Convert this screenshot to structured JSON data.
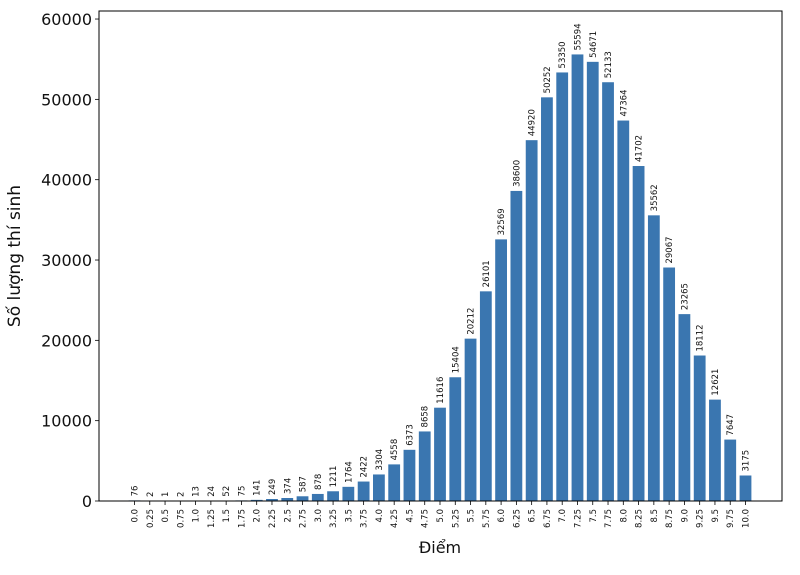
{
  "chart_data": {
    "type": "bar",
    "title": "",
    "xlabel": "Điểm",
    "ylabel": "Số lượng thí sinh",
    "ylim": [
      0,
      61000
    ],
    "yticks": [
      0,
      10000,
      20000,
      30000,
      40000,
      50000,
      60000
    ],
    "bar_color": "#3a76b0",
    "grid": false,
    "categories": [
      "0.0",
      "0.25",
      "0.5",
      "0.75",
      "1.0",
      "1.25",
      "1.5",
      "1.75",
      "2.0",
      "2.25",
      "2.5",
      "2.75",
      "3.0",
      "3.25",
      "3.5",
      "3.75",
      "4.0",
      "4.25",
      "4.5",
      "4.75",
      "5.0",
      "5.25",
      "5.5",
      "5.75",
      "6.0",
      "6.25",
      "6.5",
      "6.75",
      "7.0",
      "7.25",
      "7.5",
      "7.75",
      "8.0",
      "8.25",
      "8.5",
      "8.75",
      "9.0",
      "9.25",
      "9.5",
      "9.75",
      "10.0"
    ],
    "values": [
      76,
      2,
      1,
      2,
      13,
      24,
      52,
      75,
      141,
      249,
      374,
      587,
      878,
      1211,
      1764,
      2422,
      3304,
      4558,
      6373,
      8658,
      11616,
      15404,
      20212,
      26101,
      32569,
      38600,
      44920,
      50252,
      53350,
      55594,
      54671,
      52133,
      47364,
      41702,
      35562,
      29067,
      23265,
      18112,
      12621,
      7647,
      3175
    ],
    "value_labels": [
      "76",
      "2",
      "1",
      "2",
      "13",
      "24",
      "52",
      "75",
      "141",
      "249",
      "374",
      "587",
      "878",
      "1211",
      "1764",
      "2422",
      "3304",
      "4558",
      "6373",
      "8658",
      "11616",
      "15404",
      "20212",
      "26101",
      "32569",
      "38600",
      "44920",
      "50252",
      "53350",
      "55594",
      "54671",
      "52133",
      "47364",
      "41702",
      "35562",
      "29067",
      "23265",
      "18112",
      "12621",
      "7647",
      "3175"
    ],
    "ytick_labels": [
      "0",
      "10000",
      "20000",
      "30000",
      "40000",
      "50000",
      "60000"
    ]
  }
}
